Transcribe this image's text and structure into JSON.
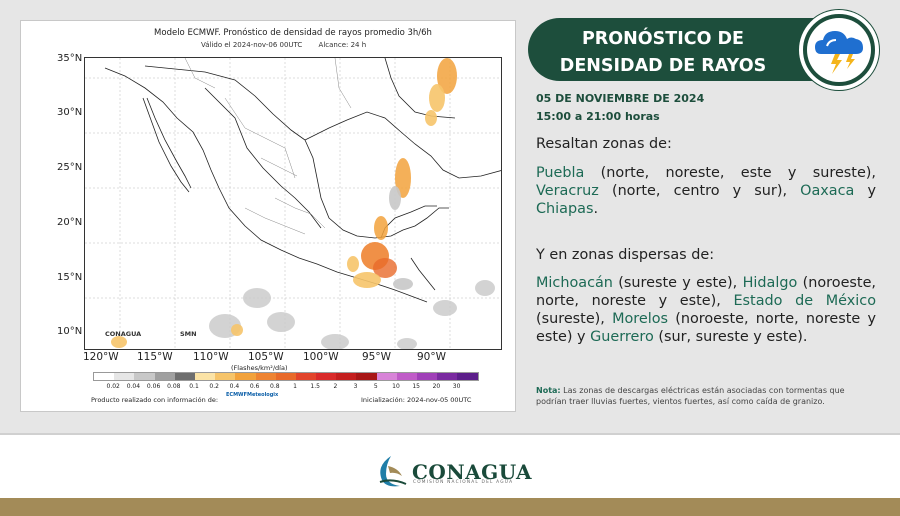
{
  "map": {
    "title": "Modelo ECMWF. Pronóstico de densidad de rayos promedio 3h/6h",
    "valid": "Válido el 2024-nov-06 00UTC",
    "reach": "Alcance: 24 h",
    "lat_labels": [
      "35°N",
      "30°N",
      "25°N",
      "20°N",
      "15°N",
      "10°N"
    ],
    "lon_labels": [
      "120°W",
      "115°W",
      "110°W",
      "105°W",
      "100°W",
      "95°W",
      "90°W"
    ],
    "units": "(Flashes/km²/día)",
    "scale_labels": [
      "0.02",
      "0.04",
      "0.06",
      "0.08",
      "0.1",
      "0.2",
      "0.4",
      "0.6",
      "0.8",
      "1",
      "1.5",
      "2",
      "3",
      "5",
      "10",
      "15",
      "20",
      "30"
    ],
    "scale_colors": [
      "#ffffff",
      "#e6e6e6",
      "#c8c8c8",
      "#a0a0a0",
      "#6e6e6e",
      "#fbe3a6",
      "#f6c46a",
      "#f2a23c",
      "#ee8433",
      "#e86a2a",
      "#e2442b",
      "#d92a2a",
      "#c41e1e",
      "#a81616",
      "#d884d8",
      "#c05cc8",
      "#a040b8",
      "#7a2aa0",
      "#5c1e8a"
    ],
    "initialization": "Inicialización: 2024-nov-05 00UTC",
    "produced_by": "Producto realizado con información de:",
    "logo_conagua": "CONAGUA",
    "logo_smn": "SMN",
    "logo_ecmwf": "ECMWF",
    "logo_meteo": "Meteologix"
  },
  "banner": {
    "line1": "PRONÓSTICO DE",
    "line2": "DENSIDAD DE RAYOS",
    "icon": "storm-cloud-icon"
  },
  "date": "05 DE NOVIEMBRE DE 2024",
  "hours": "15:00 a 21:00 horas",
  "intro": "Resaltan zonas de:",
  "zones": {
    "p1": "Puebla",
    "t1": " (norte, noreste, este y sureste), ",
    "p2": "Veracruz",
    "t2": " (norte, centro y sur), ",
    "p3": "Oaxaca",
    "t3": " y ",
    "p4": "Chiapas",
    "t4": "."
  },
  "intro2": "Y en zonas dispersas de:",
  "disp": {
    "p1": "Michoacán",
    "t1": " (sureste y este), ",
    "p2": "Hidalgo",
    "t2": " (noroeste, norte, noreste y este), ",
    "p3": "Estado de México",
    "t3": " (sureste), ",
    "p4": "Morelos",
    "t4": " (noroeste, norte, noreste y este) y ",
    "p5": "Guerrero",
    "t5": " (sur, sureste y este)."
  },
  "note": {
    "label": "Nota:",
    "text": " Las zonas de descargas eléctricas están asociadas con tormentas que podrían traer lluvias fuertes, vientos fuertes, así como caída de granizo."
  },
  "footer": {
    "brand": "CONAGUA",
    "subtitle": "COMISIÓN NACIONAL DEL AGUA"
  }
}
